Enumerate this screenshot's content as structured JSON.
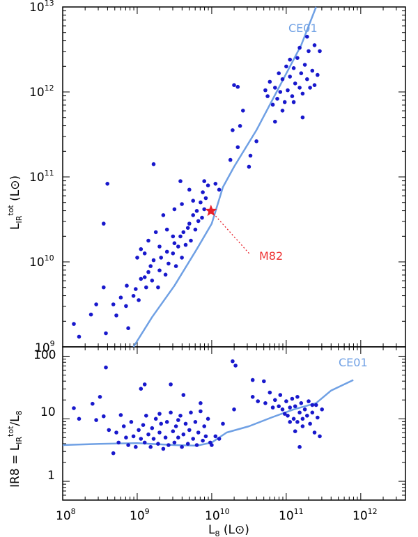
{
  "colors": {
    "points": "#1818cc",
    "model_line": "#6fa0e4",
    "highlight": "#e8202a",
    "axes": "#000000"
  },
  "chart_data": [
    {
      "type": "scatter",
      "panel": "top",
      "xlabel": "L8 (L⊙)",
      "ylabel": "LIRtot (L⊙)",
      "xscale": "log",
      "yscale": "log",
      "xlim_log10": [
        8,
        12.6
      ],
      "ylim_log10": [
        9,
        13
      ],
      "x_tick_labels": [
        "10^8",
        "10^9",
        "10^10",
        "10^11",
        "10^12"
      ],
      "y_tick_labels": [
        "10^9",
        "10^10",
        "10^11",
        "10^12",
        "10^13"
      ],
      "model": {
        "label": "CE01",
        "log_x": [
          8.95,
          9.2,
          9.5,
          9.8,
          10.0,
          10.15,
          10.3,
          10.6,
          10.9,
          11.2,
          11.4
        ],
        "log_y": [
          9.0,
          9.35,
          9.72,
          10.15,
          10.45,
          10.88,
          11.12,
          11.55,
          12.05,
          12.55,
          13.0
        ]
      },
      "highlight": {
        "label": "M82",
        "log_x": 9.99,
        "log_y": 10.6,
        "label_log_x": 10.55,
        "label_log_y": 10.04
      },
      "points": [
        [
          8.15,
          9.27
        ],
        [
          8.22,
          9.12
        ],
        [
          8.38,
          9.38
        ],
        [
          8.45,
          9.5
        ],
        [
          8.58,
          9.16
        ],
        [
          8.55,
          9.7
        ],
        [
          8.68,
          9.5
        ],
        [
          8.72,
          9.37
        ],
        [
          8.78,
          9.58
        ],
        [
          8.85,
          9.48
        ],
        [
          8.86,
          9.72
        ],
        [
          8.88,
          9.22
        ],
        [
          8.95,
          9.6
        ],
        [
          8.98,
          9.68
        ],
        [
          9.02,
          9.55
        ],
        [
          9.05,
          9.8
        ],
        [
          9.1,
          9.82
        ],
        [
          9.12,
          9.7
        ],
        [
          9.15,
          9.88
        ],
        [
          9.18,
          9.95
        ],
        [
          9.2,
          9.78
        ],
        [
          9.22,
          10.02
        ],
        [
          9.28,
          9.7
        ],
        [
          9.3,
          9.9
        ],
        [
          9.32,
          10.05
        ],
        [
          9.38,
          9.85
        ],
        [
          9.4,
          10.12
        ],
        [
          9.42,
          9.98
        ],
        [
          9.48,
          10.1
        ],
        [
          9.5,
          10.22
        ],
        [
          9.52,
          9.95
        ],
        [
          9.55,
          10.18
        ],
        [
          9.58,
          10.3
        ],
        [
          9.6,
          10.05
        ],
        [
          9.62,
          10.35
        ],
        [
          9.65,
          10.2
        ],
        [
          9.68,
          10.4
        ],
        [
          9.7,
          10.45
        ],
        [
          9.72,
          10.25
        ],
        [
          9.75,
          10.55
        ],
        [
          9.78,
          10.38
        ],
        [
          9.8,
          10.6
        ],
        [
          9.82,
          10.48
        ],
        [
          9.85,
          10.7
        ],
        [
          9.87,
          10.52
        ],
        [
          9.88,
          10.82
        ],
        [
          9.9,
          10.62
        ],
        [
          9.92,
          10.75
        ],
        [
          9.95,
          10.9
        ],
        [
          9.5,
          10.62
        ],
        [
          9.48,
          10.3
        ],
        [
          9.6,
          10.68
        ],
        [
          9.75,
          10.72
        ],
        [
          9.7,
          10.85
        ],
        [
          9.9,
          10.95
        ],
        [
          9.35,
          10.55
        ],
        [
          9.4,
          10.38
        ],
        [
          9.25,
          10.35
        ],
        [
          9.15,
          10.25
        ],
        [
          9.05,
          10.15
        ],
        [
          9.0,
          10.05
        ],
        [
          9.1,
          10.1
        ],
        [
          9.3,
          10.18
        ],
        [
          8.6,
          10.92
        ],
        [
          8.55,
          10.45
        ],
        [
          9.22,
          11.15
        ],
        [
          9.58,
          10.95
        ],
        [
          10.05,
          10.92
        ],
        [
          10.1,
          10.85
        ],
        [
          10.25,
          11.2
        ],
        [
          10.35,
          11.35
        ],
        [
          10.28,
          11.55
        ],
        [
          10.38,
          11.6
        ],
        [
          10.42,
          11.78
        ],
        [
          10.3,
          12.08
        ],
        [
          10.35,
          12.06
        ],
        [
          10.52,
          11.25
        ],
        [
          10.5,
          11.12
        ],
        [
          10.6,
          11.42
        ],
        [
          10.72,
          12.02
        ],
        [
          10.75,
          11.95
        ],
        [
          10.78,
          12.12
        ],
        [
          10.82,
          11.85
        ],
        [
          10.85,
          12.05
        ],
        [
          10.88,
          11.92
        ],
        [
          10.9,
          12.22
        ],
        [
          10.92,
          12.0
        ],
        [
          10.95,
          12.15
        ],
        [
          10.98,
          11.88
        ],
        [
          11.0,
          12.3
        ],
        [
          11.02,
          12.02
        ],
        [
          11.05,
          12.18
        ],
        [
          11.08,
          11.95
        ],
        [
          11.1,
          12.28
        ],
        [
          11.12,
          12.1
        ],
        [
          11.15,
          12.4
        ],
        [
          11.18,
          12.05
        ],
        [
          11.2,
          12.22
        ],
        [
          11.22,
          11.98
        ],
        [
          11.25,
          12.32
        ],
        [
          11.28,
          12.15
        ],
        [
          11.3,
          12.48
        ],
        [
          11.32,
          12.05
        ],
        [
          11.35,
          12.25
        ],
        [
          11.38,
          12.55
        ],
        [
          11.42,
          12.2
        ],
        [
          11.45,
          12.48
        ],
        [
          10.85,
          11.65
        ],
        [
          11.22,
          11.7
        ],
        [
          10.95,
          11.78
        ],
        [
          11.38,
          12.08
        ],
        [
          11.05,
          12.38
        ],
        [
          11.18,
          12.52
        ],
        [
          11.28,
          12.65
        ],
        [
          11.1,
          11.88
        ]
      ]
    },
    {
      "type": "scatter",
      "panel": "bottom",
      "xlabel": "L8 (L⊙)",
      "ylabel": "IR8 = LIRtot/L8",
      "xscale": "log",
      "yscale": "log",
      "xlim_log10": [
        8,
        12.6
      ],
      "ylim_log10": [
        -0.3,
        2.15
      ],
      "y_tick_labels": [
        "1",
        "10",
        "100"
      ],
      "model": {
        "label": "CE01",
        "log_x": [
          8.0,
          8.5,
          9.0,
          9.5,
          9.8,
          10.0,
          10.2,
          10.5,
          10.8,
          11.1,
          11.4,
          11.6,
          11.9
        ],
        "log_y": [
          0.58,
          0.6,
          0.61,
          0.58,
          0.57,
          0.62,
          0.78,
          0.88,
          1.02,
          1.15,
          1.25,
          1.45,
          1.62
        ]
      },
      "points": [
        [
          8.15,
          1.17
        ],
        [
          8.22,
          1.0
        ],
        [
          8.4,
          1.24
        ],
        [
          8.45,
          0.98
        ],
        [
          8.55,
          1.04
        ],
        [
          8.62,
          0.82
        ],
        [
          8.68,
          0.45
        ],
        [
          8.72,
          0.78
        ],
        [
          8.75,
          0.62
        ],
        [
          8.78,
          1.06
        ],
        [
          8.82,
          0.88
        ],
        [
          8.85,
          0.7
        ],
        [
          8.88,
          0.58
        ],
        [
          8.92,
          0.95
        ],
        [
          8.95,
          0.72
        ],
        [
          8.98,
          0.55
        ],
        [
          9.02,
          0.82
        ],
        [
          9.05,
          0.68
        ],
        [
          9.08,
          0.9
        ],
        [
          9.1,
          0.62
        ],
        [
          9.12,
          1.05
        ],
        [
          9.15,
          0.75
        ],
        [
          9.18,
          0.55
        ],
        [
          9.2,
          0.85
        ],
        [
          9.22,
          0.68
        ],
        [
          9.25,
          1.0
        ],
        [
          9.28,
          0.6
        ],
        [
          9.3,
          0.78
        ],
        [
          9.32,
          0.92
        ],
        [
          9.35,
          0.52
        ],
        [
          9.38,
          0.7
        ],
        [
          9.4,
          0.95
        ],
        [
          9.42,
          0.58
        ],
        [
          9.45,
          1.1
        ],
        [
          9.48,
          0.8
        ],
        [
          9.5,
          0.62
        ],
        [
          9.52,
          0.88
        ],
        [
          9.55,
          0.7
        ],
        [
          9.58,
          1.05
        ],
        [
          9.6,
          0.55
        ],
        [
          9.62,
          0.75
        ],
        [
          9.65,
          0.92
        ],
        [
          9.68,
          0.6
        ],
        [
          9.7,
          0.82
        ],
        [
          9.72,
          1.1
        ],
        [
          9.75,
          0.68
        ],
        [
          9.78,
          0.95
        ],
        [
          9.8,
          0.58
        ],
        [
          9.82,
          0.78
        ],
        [
          9.85,
          1.12
        ],
        [
          9.88,
          0.65
        ],
        [
          9.9,
          0.88
        ],
        [
          9.92,
          0.72
        ],
        [
          9.95,
          1.0
        ],
        [
          9.98,
          0.62
        ],
        [
          10.0,
          0.58
        ],
        [
          10.05,
          0.72
        ],
        [
          10.1,
          0.68
        ],
        [
          10.15,
          0.92
        ],
        [
          9.1,
          1.55
        ],
        [
          9.45,
          1.55
        ],
        [
          8.58,
          1.82
        ],
        [
          9.05,
          1.48
        ],
        [
          8.5,
          1.35
        ],
        [
          9.62,
          1.38
        ],
        [
          9.85,
          1.25
        ],
        [
          10.3,
          1.15
        ],
        [
          10.28,
          1.92
        ],
        [
          10.32,
          1.85
        ],
        [
          10.55,
          1.62
        ],
        [
          10.7,
          1.6
        ],
        [
          10.78,
          1.42
        ],
        [
          10.85,
          1.3
        ],
        [
          10.9,
          1.2
        ],
        [
          10.92,
          1.38
        ],
        [
          10.95,
          1.15
        ],
        [
          10.98,
          1.08
        ],
        [
          11.0,
          1.28
        ],
        [
          11.02,
          1.05
        ],
        [
          11.05,
          1.18
        ],
        [
          11.08,
          1.32
        ],
        [
          11.1,
          1.0
        ],
        [
          11.12,
          1.2
        ],
        [
          11.15,
          0.95
        ],
        [
          11.18,
          1.1
        ],
        [
          11.2,
          1.25
        ],
        [
          11.22,
          0.88
        ],
        [
          11.25,
          1.15
        ],
        [
          11.28,
          1.05
        ],
        [
          11.3,
          1.28
        ],
        [
          11.32,
          0.92
        ],
        [
          11.35,
          1.1
        ],
        [
          11.38,
          0.78
        ],
        [
          11.4,
          1.22
        ],
        [
          11.45,
          0.72
        ],
        [
          10.82,
          1.18
        ],
        [
          10.72,
          1.25
        ],
        [
          11.05,
          0.95
        ],
        [
          11.15,
          1.35
        ],
        [
          11.22,
          1.0
        ],
        [
          11.35,
          1.22
        ],
        [
          11.42,
          1.02
        ],
        [
          11.48,
          1.15
        ],
        [
          10.55,
          1.35
        ],
        [
          10.62,
          1.28
        ],
        [
          9.3,
          1.08
        ],
        [
          9.55,
          0.98
        ],
        [
          11.18,
          0.55
        ],
        [
          11.12,
          0.8
        ]
      ]
    }
  ]
}
